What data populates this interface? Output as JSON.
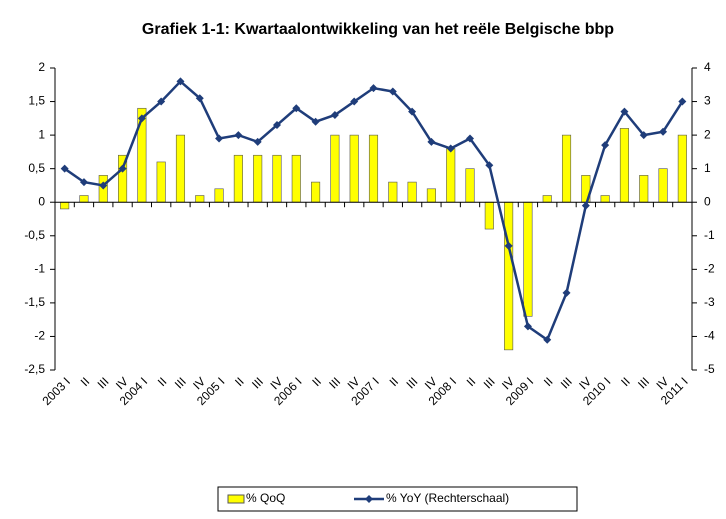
{
  "chart_data": {
    "type": "bar_line",
    "title": "Grafiek 1-1: Kwartaalontwikkeling van het reële Belgische bbp",
    "categories": [
      "2003 I",
      "II",
      "III",
      "IV",
      "2004 I",
      "II",
      "III",
      "IV",
      "2005 I",
      "II",
      "III",
      "IV",
      "2006 I",
      "II",
      "III",
      "IV",
      "2007 I",
      "II",
      "III",
      "IV",
      "2008 I",
      "II",
      "III",
      "IV",
      "2009 I",
      "II",
      "III",
      "IV",
      "2010 I",
      "II",
      "III",
      "IV",
      "2011 I"
    ],
    "series": [
      {
        "name": "% QoQ",
        "color": "#ffff00",
        "type": "bar",
        "values": [
          -0.1,
          0.1,
          0.4,
          0.7,
          1.4,
          0.6,
          1.0,
          0.1,
          0.2,
          0.7,
          0.7,
          0.7,
          0.7,
          0.3,
          1.0,
          1.0,
          1.0,
          0.3,
          0.3,
          0.2,
          0.8,
          0.5,
          -0.4,
          -2.2,
          -1.7,
          0.1,
          1.0,
          0.4,
          0.1,
          1.1,
          0.4,
          0.5,
          1.0
        ]
      },
      {
        "name": "% YoY (Rechterschaal)",
        "color": "#1f3d7a",
        "type": "line",
        "axis": "y2",
        "values": [
          1.0,
          0.6,
          0.5,
          1.0,
          2.5,
          3.0,
          3.6,
          3.1,
          1.9,
          2.0,
          1.8,
          2.3,
          2.8,
          2.4,
          2.6,
          3.0,
          3.4,
          3.3,
          2.7,
          1.8,
          1.6,
          1.9,
          1.1,
          -1.3,
          -3.7,
          -4.1,
          -2.7,
          -0.1,
          1.7,
          2.7,
          2.0,
          2.1,
          3.0
        ]
      }
    ],
    "ylim": [
      -2.5,
      2
    ],
    "yticks": [
      {
        "value": -2.5,
        "label": "-2,5"
      },
      -2,
      {
        "value": -1.5,
        "label": "-1,5"
      },
      -1,
      {
        "value": -0.5,
        "label": "-0,5"
      },
      0,
      {
        "value": 0.5,
        "label": "0,5"
      },
      1,
      {
        "value": 1.5,
        "label": "1,5"
      },
      2
    ],
    "y2lim": [
      -5,
      4
    ],
    "y2ticks": [
      -5,
      -4,
      -3,
      -2,
      -1,
      0,
      1,
      2,
      3,
      4
    ],
    "grid": false,
    "legend": "bottom"
  }
}
